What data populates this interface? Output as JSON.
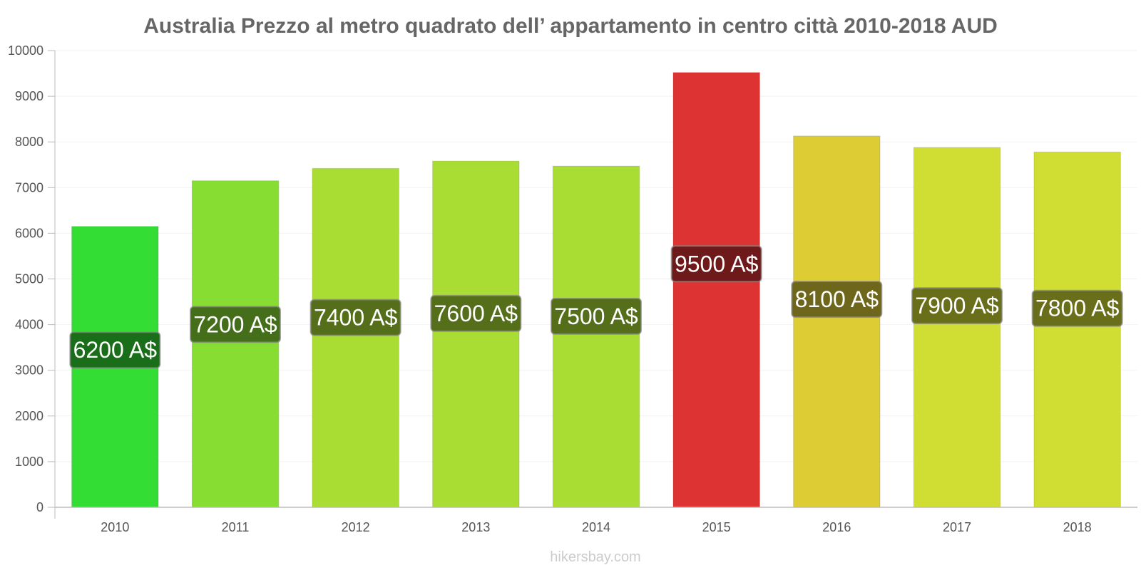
{
  "chart_data": {
    "type": "bar",
    "title": "Australia Prezzo al metro quadrato dell’ appartamento in centro città 2010-2018 AUD",
    "xlabel": "",
    "ylabel": "",
    "ylim": [
      0,
      10000
    ],
    "yticks": [
      0,
      1000,
      2000,
      3000,
      4000,
      5000,
      6000,
      7000,
      8000,
      9000,
      10000
    ],
    "categories": [
      "2010",
      "2011",
      "2012",
      "2013",
      "2014",
      "2015",
      "2016",
      "2017",
      "2018"
    ],
    "values": [
      6150,
      7150,
      7420,
      7580,
      7470,
      9520,
      8130,
      7880,
      7780
    ],
    "data_labels": [
      "6200 A$",
      "7200 A$",
      "7400 A$",
      "7600 A$",
      "7500 A$",
      "9500 A$",
      "8100 A$",
      "7900 A$",
      "7800 A$"
    ],
    "bar_colors": [
      "#33dd33",
      "#88dd33",
      "#aadd33",
      "#aadd33",
      "#aadd33",
      "#dd3333",
      "#ddcc33",
      "#d0dd33",
      "#d0dd33"
    ],
    "label_bg_colors": [
      "#1a6e1a",
      "#446e1a",
      "#556e1a",
      "#556e1a",
      "#556e1a",
      "#6e1a1a",
      "#6e661a",
      "#686e1a",
      "#686e1a"
    ],
    "grid": true,
    "legend": "none"
  },
  "footer": {
    "credit": "hikersbay.com"
  }
}
